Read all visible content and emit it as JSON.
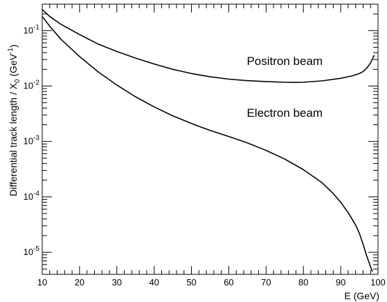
{
  "chart_data": {
    "type": "line",
    "title": "",
    "xlabel": "E (GeV)",
    "ylabel": {
      "main": "Differential track length / X",
      "sub": "0",
      "unit": " (GeV",
      "sup": "-1",
      "close": ")"
    },
    "xlim": [
      10,
      100
    ],
    "ylim": [
      4e-06,
      0.3
    ],
    "yscale": "log",
    "grid": false,
    "legend": "none",
    "x_ticks": [
      "10",
      "20",
      "30",
      "40",
      "50",
      "60",
      "70",
      "80",
      "90",
      "100"
    ],
    "y_ticks": [
      {
        "base": "10",
        "exp": "-5"
      },
      {
        "base": "10",
        "exp": "-4"
      },
      {
        "base": "10",
        "exp": "-3"
      },
      {
        "base": "10",
        "exp": "-2"
      },
      {
        "base": "10",
        "exp": "-1"
      }
    ],
    "annotations": [
      {
        "text": "Positron beam",
        "x": 75,
        "y": 0.024
      },
      {
        "text": "Electron beam",
        "x": 75,
        "y": 0.0028
      }
    ],
    "series": [
      {
        "label": "Positron beam",
        "color": "#000000",
        "x": [
          10,
          12,
          15,
          20,
          25,
          30,
          35,
          40,
          45,
          50,
          55,
          60,
          65,
          70,
          75,
          78,
          80,
          85,
          90,
          93,
          95,
          96,
          97,
          98,
          99
        ],
        "y": [
          0.24,
          0.18,
          0.13,
          0.085,
          0.057,
          0.042,
          0.032,
          0.025,
          0.02,
          0.0168,
          0.0147,
          0.0133,
          0.0125,
          0.012,
          0.0117,
          0.0116,
          0.0117,
          0.0124,
          0.0138,
          0.0152,
          0.0168,
          0.0182,
          0.021,
          0.026,
          0.036
        ]
      },
      {
        "label": "Electron beam",
        "color": "#000000",
        "x": [
          10,
          12,
          15,
          20,
          25,
          30,
          35,
          40,
          45,
          50,
          55,
          60,
          65,
          70,
          75,
          80,
          85,
          88,
          90,
          92,
          94,
          95,
          96,
          97,
          98,
          98.5
        ],
        "y": [
          0.18,
          0.12,
          0.07,
          0.034,
          0.018,
          0.0104,
          0.0064,
          0.0042,
          0.0029,
          0.0021,
          0.00158,
          0.00123,
          0.00094,
          0.00069,
          0.00048,
          0.00031,
          0.00018,
          0.000115,
          8e-05,
          5.2e-05,
          3.1e-05,
          2.2e-05,
          1.4e-05,
          8.5e-06,
          5.5e-06,
          4.5e-06
        ]
      }
    ]
  }
}
